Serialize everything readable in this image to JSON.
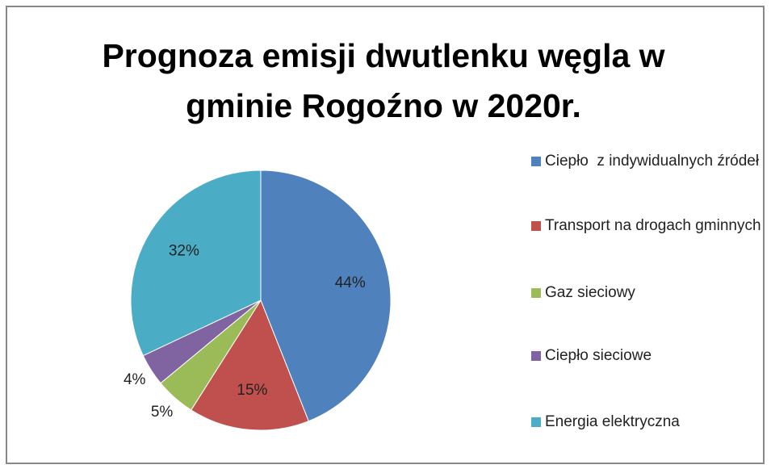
{
  "chart_data": {
    "type": "pie",
    "title": "Prognoza emisji dwutlenku węgla w gminie Rogoźno w 2020r.",
    "categories": [
      "Ciepło  z indywidualnych źródeł",
      "Transport na drogach gminnych",
      "Gaz sieciowy",
      "Ciepło sieciowe",
      "Energia elektryczna"
    ],
    "values": [
      44,
      15,
      5,
      4,
      32
    ],
    "value_labels": [
      "44%",
      "15%",
      "5%",
      "4%",
      "32%"
    ],
    "colors": [
      "#4f81bd",
      "#c0504d",
      "#9bbb59",
      "#8064a2",
      "#4bacc6"
    ],
    "legend": "right"
  }
}
